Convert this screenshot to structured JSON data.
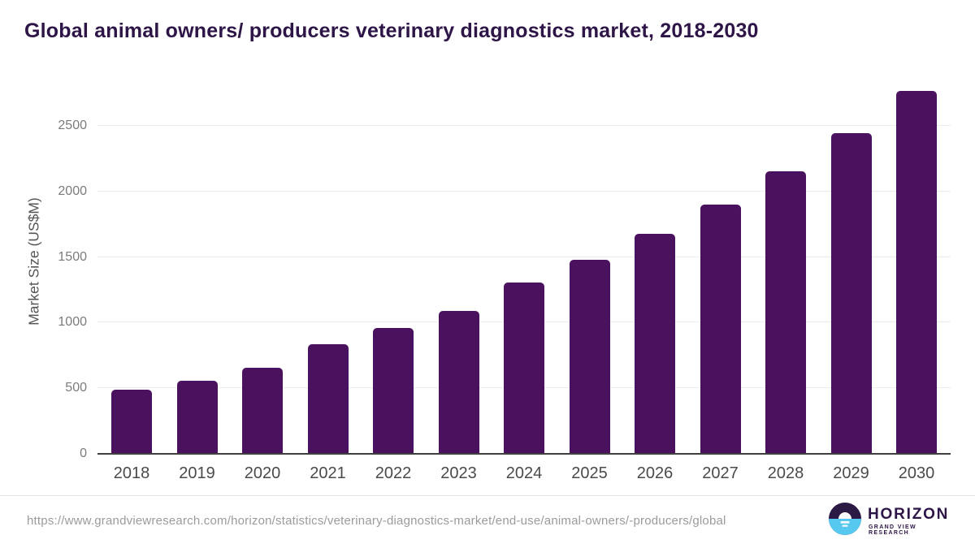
{
  "title": "Global animal owners/ producers veterinary diagnostics market, 2018-2030",
  "chart_data": {
    "type": "bar",
    "title": "Global animal owners/ producers veterinary diagnostics market, 2018-2030",
    "categories": [
      "2018",
      "2019",
      "2020",
      "2021",
      "2022",
      "2023",
      "2024",
      "2025",
      "2026",
      "2027",
      "2028",
      "2029",
      "2030"
    ],
    "values": [
      490,
      560,
      655,
      835,
      960,
      1090,
      1305,
      1480,
      1675,
      1900,
      2155,
      2445,
      2765
    ],
    "xlabel": "",
    "ylabel": "Market Size (US$M)",
    "ylim": [
      0,
      2800
    ],
    "yticks": [
      0,
      500,
      1000,
      1500,
      2000,
      2500
    ],
    "grid": "horizontal",
    "legend": "none"
  },
  "colors": {
    "bar": "#4a115f",
    "title_text": "#2e1547",
    "gridline": "#ececec",
    "baseline": "#3f3f3f",
    "divider": "#e3e3e3",
    "footer_text": "#9b9b9b",
    "logo_purple": "#2b1a44",
    "logo_blue": "#57c8ef"
  },
  "footer": {
    "url": "https://www.grandviewresearch.com/horizon/statistics/veterinary-diagnostics-market/end-use/animal-owners/-producers/global",
    "logo": {
      "brand": "HORIZON",
      "sub": "GRAND VIEW RESEARCH",
      "icon": "sunrise-horizon-icon"
    }
  }
}
